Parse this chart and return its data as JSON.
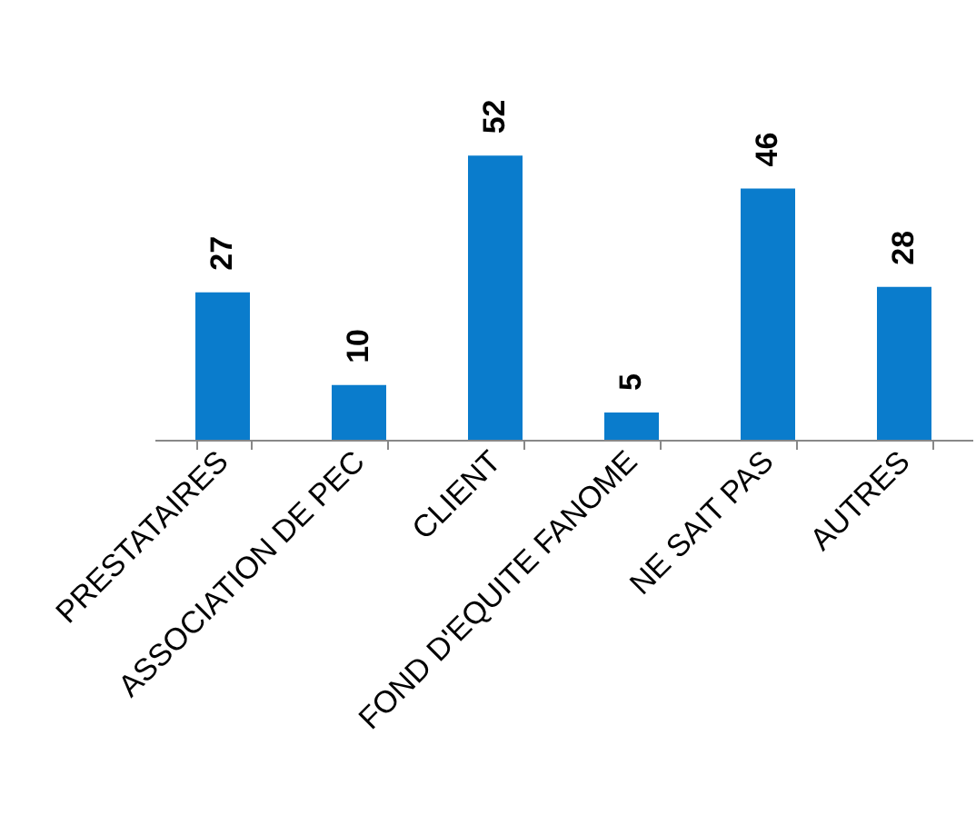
{
  "chart_data": {
    "type": "bar",
    "categories": [
      "PRESTATAIRES",
      "ASSOCIATION DE PEC",
      "CLIENT",
      "FOND D'EQUITE FANOME",
      "NE SAIT PAS",
      "AUTRES"
    ],
    "values": [
      27,
      10,
      52,
      5,
      46,
      28
    ],
    "color": "#0a7ccc",
    "data_labels": true
  }
}
